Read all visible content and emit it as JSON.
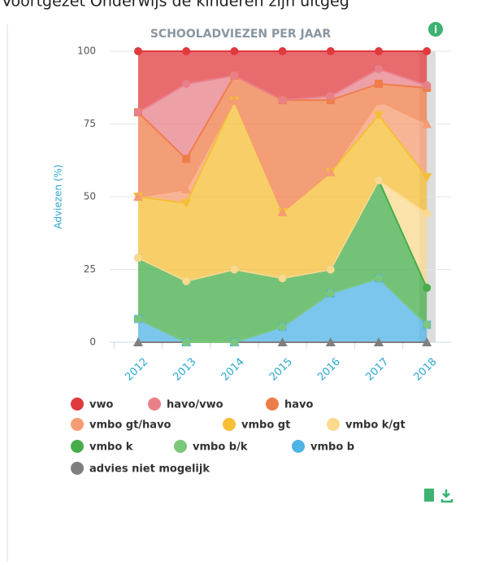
{
  "page_header": "Voortgezet Onderwijs de kinderen zijn uitgeg",
  "chart_data": {
    "type": "stacked_area",
    "title": "SCHOOLADVIEZEN PER JAAR",
    "y_label": "Adviezen (%)",
    "categories": [
      "2012",
      "2013",
      "2014",
      "2015",
      "2016",
      "2017",
      "2018"
    ],
    "ylim": [
      0,
      100
    ],
    "yticks": [
      0,
      25,
      50,
      75,
      100
    ],
    "grid": true,
    "series": [
      {
        "name": "advies niet mogelijk",
        "color": "#7f7f7f",
        "marker": "triangle",
        "values": [
          0,
          0,
          0,
          0,
          0,
          0,
          0
        ]
      },
      {
        "name": "vmbo b",
        "color": "#4fb3e6",
        "marker": "square",
        "values": [
          8,
          0,
          0,
          5.3,
          16.8,
          22,
          6
        ]
      },
      {
        "name": "vmbo b/k",
        "color": "#7cc77c",
        "marker": "circle",
        "values": [
          0,
          0,
          0,
          0,
          0,
          0,
          0
        ]
      },
      {
        "name": "vmbo k",
        "color": "#46ad4a",
        "marker": "circle",
        "values": [
          21,
          21,
          25,
          16.7,
          8.2,
          33.6,
          12.7
        ]
      },
      {
        "name": "vmbo k/gt",
        "color": "#fbd98f",
        "marker": "circle",
        "values": [
          0,
          0,
          0,
          0,
          0,
          0,
          25.5
        ]
      },
      {
        "name": "vmbo gt",
        "color": "#f5be35",
        "marker": "triangle-down",
        "values": [
          21,
          26.8,
          58,
          22.7,
          33.4,
          22.4,
          12.5
        ]
      },
      {
        "name": "vmbo gt/havo",
        "color": "#f59c72",
        "marker": "triangle",
        "values": [
          0,
          4.7,
          0,
          0,
          0,
          5,
          18.3
        ]
      },
      {
        "name": "havo",
        "color": "#ef7d4a",
        "marker": "square",
        "values": [
          29,
          10.5,
          8.6,
          38.5,
          24.8,
          5.8,
          12.4
        ]
      },
      {
        "name": "havo/vwo",
        "color": "#e8808a",
        "marker": "circle",
        "values": [
          0,
          25.8,
          0,
          0,
          1.4,
          5.1,
          0.9
        ]
      },
      {
        "name": "vwo",
        "color": "#e0393e",
        "marker": "circle",
        "values": [
          21,
          11.2,
          8.4,
          16.8,
          15.4,
          6.1,
          11.7
        ]
      }
    ]
  }
}
